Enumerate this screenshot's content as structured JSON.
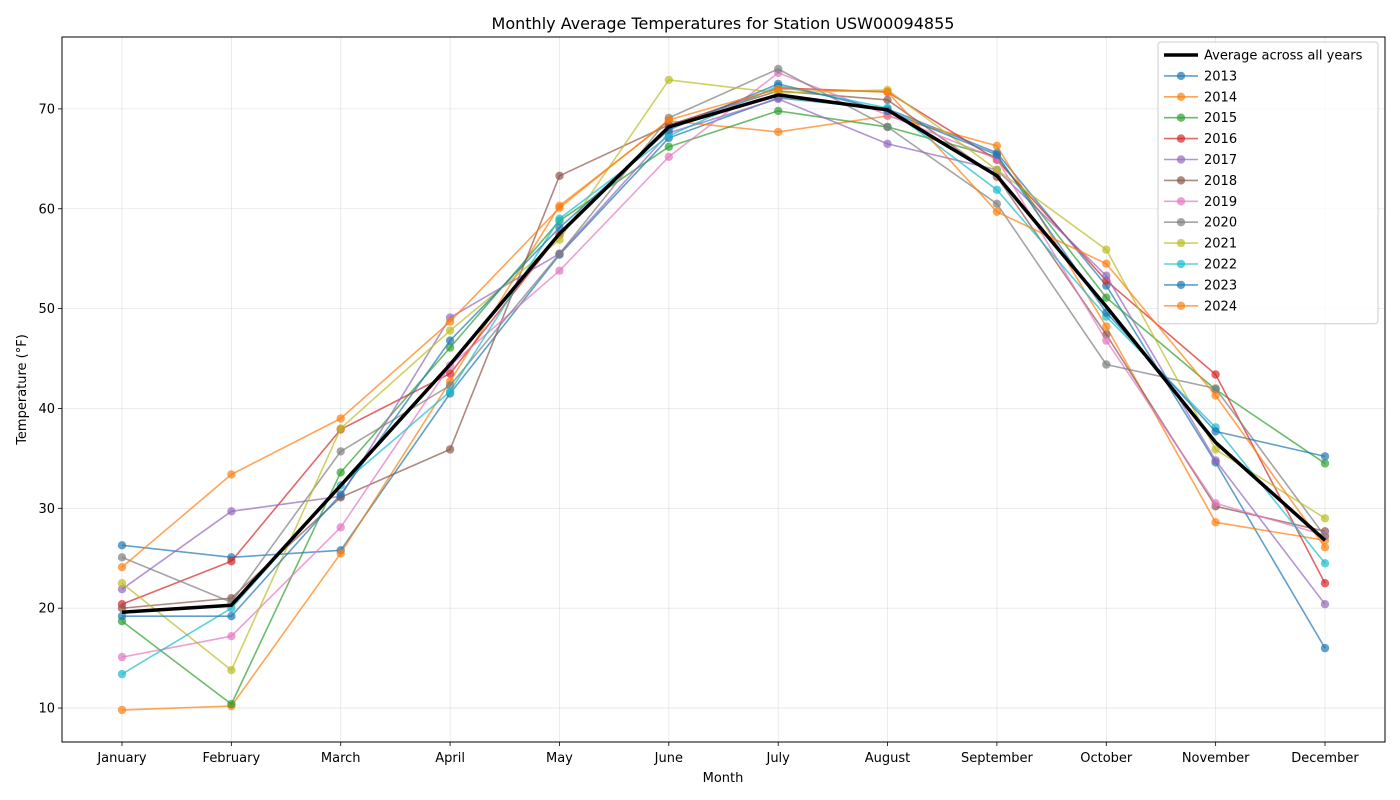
{
  "chart_data": {
    "type": "line",
    "title": "Monthly Average Temperatures for Station USW00094855",
    "xlabel": "Month",
    "ylabel": "Temperature (°F)",
    "categories": [
      "January",
      "February",
      "March",
      "April",
      "May",
      "June",
      "July",
      "August",
      "September",
      "October",
      "November",
      "December"
    ],
    "ylim": [
      6.6,
      77.2
    ],
    "yticks": [
      10,
      20,
      30,
      40,
      50,
      60,
      70
    ],
    "grid": true,
    "legend": "top-right",
    "average": {
      "name": "Average across all years",
      "color": "#000000",
      "values": [
        19.6,
        20.3,
        32.3,
        44.4,
        57.5,
        68.2,
        71.4,
        69.9,
        63.3,
        50.2,
        36.6,
        26.8
      ]
    },
    "series": [
      {
        "name": "2013",
        "color": "#1f77b4",
        "values": [
          26.3,
          25.1,
          25.8,
          41.5,
          55.4,
          67.1,
          71.1,
          70.0,
          65.6,
          52.3,
          34.6,
          16.0
        ]
      },
      {
        "name": "2014",
        "color": "#ff7f0e",
        "values": [
          9.8,
          10.2,
          25.5,
          42.7,
          60.3,
          68.8,
          67.7,
          69.3,
          66.3,
          48.2,
          28.6,
          26.8
        ]
      },
      {
        "name": "2015",
        "color": "#2ca02c",
        "values": [
          18.7,
          10.4,
          33.6,
          46.1,
          58.8,
          66.2,
          69.8,
          68.2,
          65.2,
          51.1,
          41.9,
          34.5
        ]
      },
      {
        "name": "2016",
        "color": "#d62728",
        "values": [
          20.4,
          24.7,
          37.9,
          43.5,
          57.4,
          68.3,
          72.1,
          71.7,
          64.9,
          52.8,
          43.4,
          22.5
        ]
      },
      {
        "name": "2017",
        "color": "#9467bd",
        "values": [
          21.9,
          29.7,
          31.2,
          49.1,
          55.5,
          67.6,
          71.0,
          66.5,
          63.9,
          53.3,
          34.8,
          20.4
        ]
      },
      {
        "name": "2018",
        "color": "#8c564b",
        "values": [
          20.0,
          21.0,
          31.1,
          35.9,
          63.3,
          68.4,
          71.8,
          70.9,
          63.2,
          47.4,
          30.2,
          27.7
        ]
      },
      {
        "name": "2019",
        "color": "#e377c2",
        "values": [
          15.1,
          17.2,
          28.1,
          44.3,
          53.8,
          65.2,
          73.6,
          69.4,
          65.0,
          46.8,
          30.5,
          27.3
        ]
      },
      {
        "name": "2020",
        "color": "#7f7f7f",
        "values": [
          25.1,
          20.6,
          35.7,
          42.3,
          55.5,
          69.1,
          74.0,
          68.2,
          60.5,
          44.4,
          42.0,
          27.2
        ]
      },
      {
        "name": "2021",
        "color": "#bcbd22",
        "values": [
          22.5,
          13.8,
          38.0,
          47.8,
          56.9,
          72.9,
          71.6,
          71.9,
          63.9,
          55.9,
          35.9,
          29.0
        ]
      },
      {
        "name": "2022",
        "color": "#17becf",
        "values": [
          13.4,
          20.0,
          32.3,
          41.7,
          59.0,
          67.3,
          72.3,
          70.1,
          61.9,
          49.2,
          38.1,
          24.5
        ]
      },
      {
        "name": "2023",
        "color": "#1f77b4",
        "values": [
          19.2,
          19.2,
          31.4,
          46.8,
          58.1,
          67.9,
          72.5,
          69.8,
          65.4,
          49.6,
          37.7,
          35.2
        ]
      },
      {
        "name": "2024",
        "color": "#ff7f0e",
        "values": [
          24.1,
          33.4,
          39.0,
          48.7,
          60.1,
          68.9,
          72.0,
          71.7,
          59.7,
          54.5,
          41.3,
          26.1
        ]
      }
    ]
  }
}
